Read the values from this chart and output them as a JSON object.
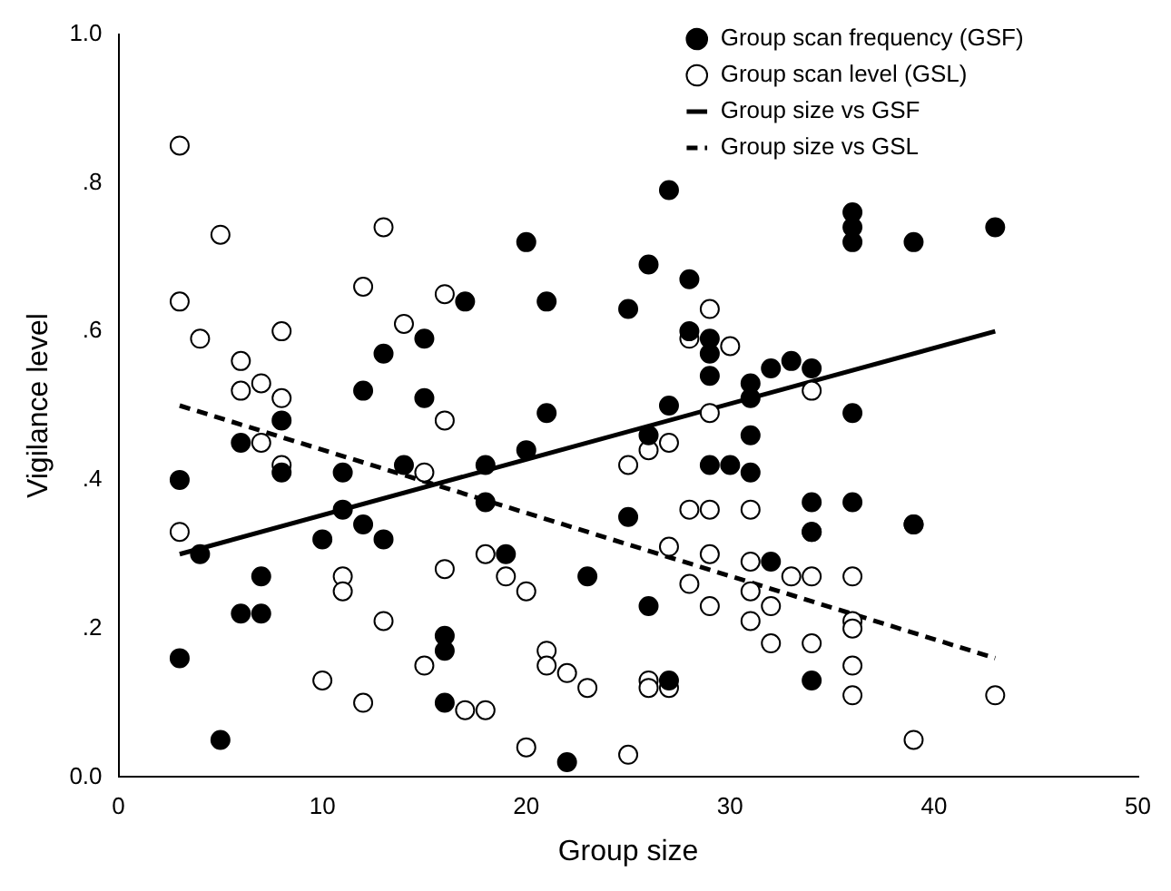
{
  "chart_data": {
    "type": "scatter",
    "xlabel": "Group size",
    "ylabel": "Vigilance level",
    "xlim": [
      0,
      50
    ],
    "xticks": [
      0,
      10,
      20,
      30,
      40,
      50
    ],
    "ylim": [
      0,
      1
    ],
    "yticks": [
      {
        "value": 0,
        "label": "0.0"
      },
      {
        "value": 0.2,
        "label": ".2"
      },
      {
        "value": 0.4,
        "label": ".4"
      },
      {
        "value": 0.6,
        "label": ".6"
      },
      {
        "value": 0.8,
        "label": ".8"
      },
      {
        "value": 1,
        "label": "1.0"
      }
    ],
    "grid": false,
    "legend": "top right",
    "series": [
      {
        "name": "Group scan frequency (GSF)",
        "marker": "circle",
        "color": "#000000",
        "x": [
          3,
          3,
          4,
          5,
          6,
          6,
          7,
          7,
          8,
          8,
          10,
          11,
          11,
          12,
          12,
          13,
          13,
          14,
          15,
          15,
          16,
          16,
          16,
          17,
          18,
          18,
          19,
          20,
          20,
          21,
          21,
          22,
          23,
          25,
          25,
          26,
          26,
          26,
          27,
          27,
          27,
          28,
          28,
          29,
          29,
          29,
          29,
          30,
          31,
          31,
          31,
          31,
          32,
          32,
          33,
          34,
          34,
          34,
          34,
          36,
          36,
          36,
          36,
          36,
          39,
          39,
          43
        ],
        "values": [
          0.4,
          0.16,
          0.3,
          0.05,
          0.45,
          0.22,
          0.27,
          0.22,
          0.48,
          0.41,
          0.32,
          0.41,
          0.36,
          0.52,
          0.34,
          0.57,
          0.32,
          0.42,
          0.59,
          0.51,
          0.19,
          0.17,
          0.1,
          0.64,
          0.42,
          0.37,
          0.3,
          0.72,
          0.44,
          0.64,
          0.49,
          0.02,
          0.27,
          0.63,
          0.35,
          0.69,
          0.46,
          0.23,
          0.79,
          0.5,
          0.13,
          0.67,
          0.6,
          0.59,
          0.57,
          0.54,
          0.42,
          0.42,
          0.53,
          0.51,
          0.46,
          0.41,
          0.55,
          0.29,
          0.56,
          0.55,
          0.37,
          0.33,
          0.13,
          0.76,
          0.74,
          0.72,
          0.49,
          0.37,
          0.72,
          0.34,
          0.74
        ]
      },
      {
        "name": "Group scan level (GSL)",
        "marker": "circle",
        "color": "#000000",
        "x": [
          3,
          3,
          3,
          4,
          5,
          6,
          6,
          7,
          7,
          8,
          8,
          8,
          10,
          11,
          11,
          12,
          12,
          13,
          13,
          14,
          15,
          15,
          16,
          16,
          16,
          17,
          18,
          18,
          19,
          20,
          20,
          21,
          21,
          22,
          23,
          25,
          25,
          26,
          26,
          26,
          27,
          27,
          27,
          28,
          28,
          28,
          29,
          29,
          29,
          29,
          29,
          30,
          31,
          31,
          31,
          31,
          32,
          32,
          33,
          34,
          34,
          34,
          34,
          36,
          36,
          36,
          36,
          36,
          39,
          39,
          43
        ],
        "values": [
          0.85,
          0.64,
          0.33,
          0.59,
          0.73,
          0.56,
          0.52,
          0.53,
          0.45,
          0.6,
          0.51,
          0.42,
          0.13,
          0.27,
          0.25,
          0.66,
          0.1,
          0.74,
          0.21,
          0.61,
          0.41,
          0.15,
          0.65,
          0.48,
          0.28,
          0.09,
          0.3,
          0.09,
          0.27,
          0.25,
          0.04,
          0.17,
          0.15,
          0.14,
          0.12,
          0.42,
          0.03,
          0.44,
          0.13,
          0.12,
          0.45,
          0.31,
          0.12,
          0.59,
          0.36,
          0.26,
          0.63,
          0.49,
          0.36,
          0.3,
          0.23,
          0.58,
          0.36,
          0.29,
          0.25,
          0.21,
          0.23,
          0.18,
          0.27,
          0.52,
          0.33,
          0.27,
          0.18,
          0.27,
          0.21,
          0.2,
          0.15,
          0.11,
          0.34,
          0.05,
          0.11
        ]
      },
      {
        "name": "Group size vs GSF",
        "type": "line",
        "color": "#000000",
        "line_style": "solid",
        "x": [
          3,
          43
        ],
        "values": [
          0.3,
          0.6
        ]
      },
      {
        "name": "Group size vs GSL",
        "type": "line",
        "color": "#000000",
        "line_style": "dashed",
        "x": [
          3,
          43
        ],
        "values": [
          0.5,
          0.16
        ]
      }
    ]
  }
}
